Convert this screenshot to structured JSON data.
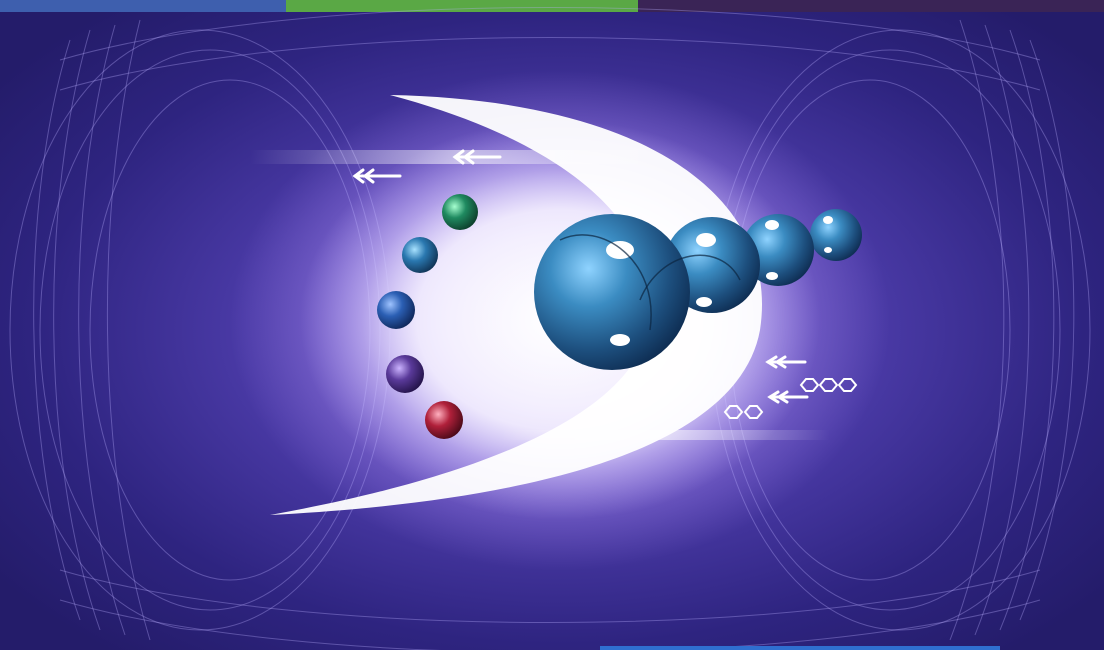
{
  "scene": {
    "description_colors": {
      "background": "#2e2480",
      "glow": "#ffffff",
      "mesh": "#b9b0ff",
      "big_spheres": "#2c6f9e",
      "top_bar_blue": "#3e5fae",
      "top_bar_green": "#5aa845",
      "top_bar_dark": "#3a2456",
      "bottom_bar_blue": "#2f6fd0"
    },
    "small_sphere_colors": [
      "#1f8a60",
      "#2a78b0",
      "#2b5fb4",
      "#5a3a9a",
      "#b0203a"
    ]
  }
}
